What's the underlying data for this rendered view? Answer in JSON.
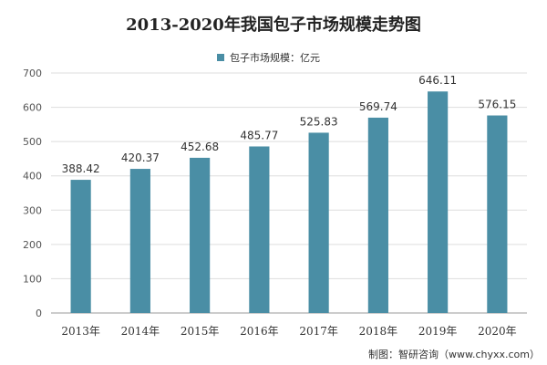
{
  "chart_data": {
    "type": "bar",
    "title": "2013-2020年我国包子市场规模走势图",
    "categories": [
      "2013年",
      "2014年",
      "2015年",
      "2016年",
      "2017年",
      "2018年",
      "2019年",
      "2020年"
    ],
    "series": [
      {
        "name": "包子市场规模：亿元",
        "values": [
          388.42,
          420.37,
          452.68,
          485.77,
          525.83,
          569.74,
          646.11,
          576.15
        ],
        "color": "#4a8ea5"
      }
    ],
    "data_labels": [
      "388.42",
      "420.37",
      "452.68",
      "485.77",
      "525.83",
      "569.74",
      "646.11",
      "576.15"
    ],
    "ylim": [
      0,
      700
    ],
    "yticks": [
      0,
      100,
      200,
      300,
      400,
      500,
      600,
      700
    ],
    "grid": true,
    "legend": "top-center"
  },
  "source": "制图：智研咨询（www.chyxx.com）"
}
